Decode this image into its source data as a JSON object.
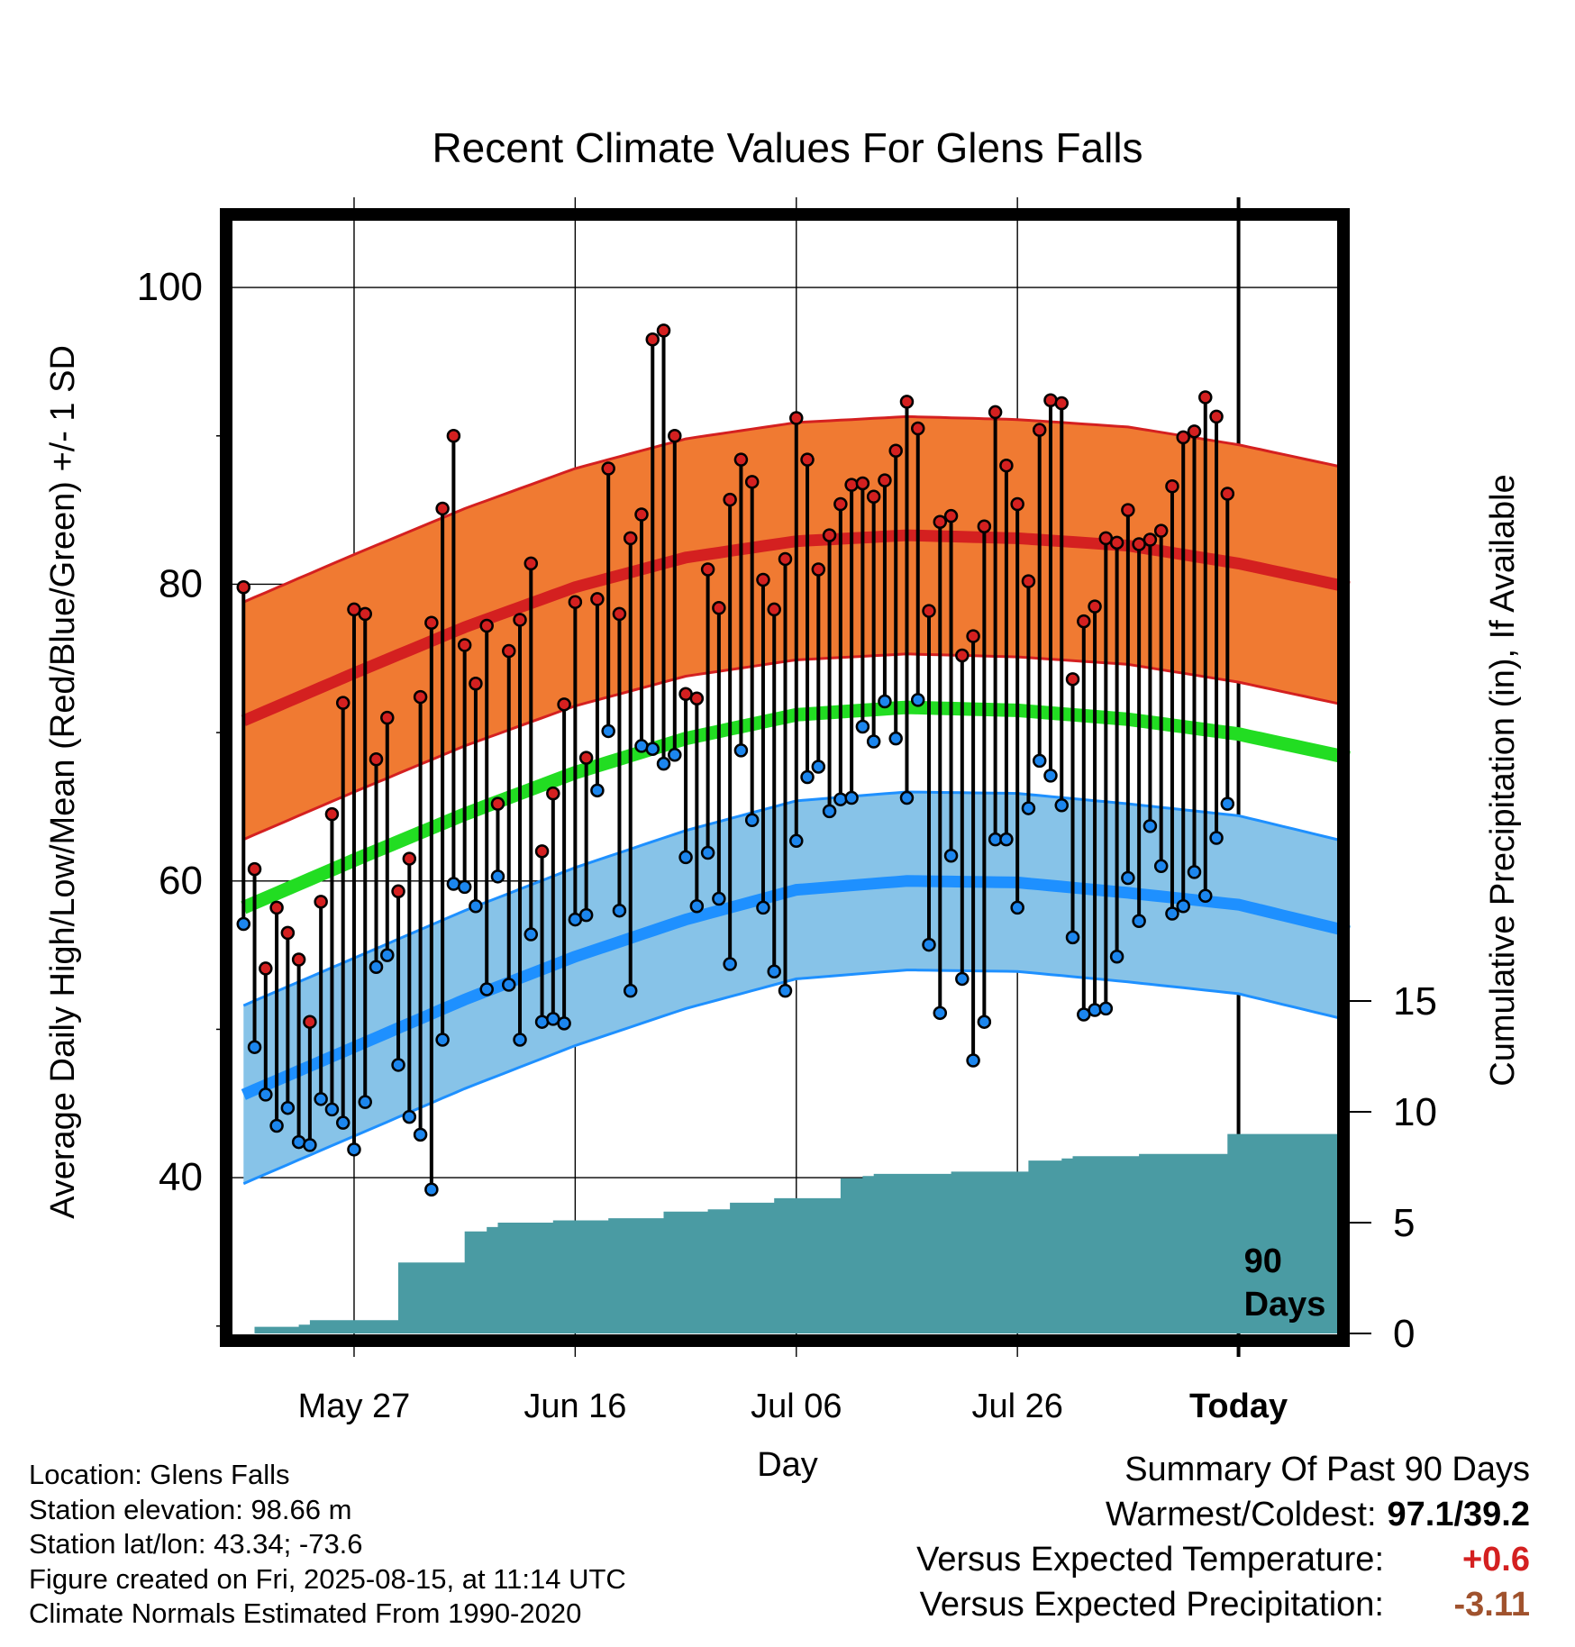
{
  "chart_data": {
    "type": "line",
    "title": "Recent Climate Values For Glens Falls",
    "xlabel": "Day",
    "ylabel_left": "Average Daily High/Low/Mean (Red/Blue/Green) +/- 1 SD",
    "ylabel_right": "Cumulative Precipitation (in), If Available",
    "x_ticks": [
      "May 27",
      "Jun 16",
      "Jul 06",
      "Jul 26",
      "Today"
    ],
    "x_tick_days": [
      10,
      30,
      50,
      70,
      90
    ],
    "xlim": [
      -1,
      99
    ],
    "y_left_ticks": [
      40,
      60,
      80,
      100
    ],
    "y_left_minor_ticks": [
      30,
      50,
      70,
      90
    ],
    "ylim_left": [
      29.5,
      104.5
    ],
    "y_right_ticks": [
      0,
      5,
      10,
      15
    ],
    "today_marker": "90\nDays",
    "grid": true,
    "normals": {
      "days": [
        0,
        10,
        20,
        30,
        40,
        50,
        60,
        70,
        80,
        90,
        100
      ],
      "high_mean": [
        70.8,
        74.0,
        77.1,
        79.8,
        81.8,
        82.9,
        83.3,
        83.1,
        82.6,
        81.4,
        79.8
      ],
      "high_sd": 8.0,
      "mean": [
        58.2,
        61.4,
        64.5,
        67.3,
        69.6,
        71.2,
        71.7,
        71.5,
        70.9,
        69.9,
        68.3
      ],
      "low_mean": [
        45.6,
        48.8,
        52.0,
        54.9,
        57.4,
        59.4,
        60.0,
        59.9,
        59.2,
        58.4,
        56.6
      ],
      "low_sd": 6.0
    },
    "series": [
      {
        "name": "High",
        "color": "#d42020",
        "values": [
          79.8,
          60.8,
          54.1,
          58.2,
          56.5,
          54.7,
          50.5,
          58.6,
          64.5,
          72.0,
          78.3,
          78.0,
          68.2,
          71.0,
          59.3,
          61.5,
          72.4,
          77.4,
          85.1,
          90.0,
          75.9,
          73.3,
          77.2,
          65.2,
          75.5,
          77.6,
          81.4,
          62.0,
          65.9,
          71.9,
          78.8,
          68.3,
          79.0,
          87.8,
          78.0,
          83.1,
          84.7,
          96.5,
          97.1,
          90.0,
          72.6,
          72.3,
          81.0,
          78.4,
          85.7,
          88.4,
          86.9,
          80.3,
          78.3,
          81.7,
          91.2,
          88.4,
          81.0,
          83.3,
          85.4,
          86.7,
          86.8,
          85.9,
          87.0,
          89.0,
          92.3,
          90.5,
          78.2,
          84.2,
          84.6,
          75.2,
          76.5,
          83.9,
          91.6,
          88.0,
          85.4,
          80.2,
          90.4,
          92.4,
          92.2,
          73.6,
          77.5,
          78.5,
          83.1,
          82.8,
          85.0,
          82.7,
          83.0,
          83.6,
          86.6,
          89.9,
          90.3,
          92.6,
          91.3,
          86.1
        ]
      },
      {
        "name": "Low",
        "color": "#1c86ee",
        "values": [
          57.1,
          48.8,
          45.6,
          43.5,
          44.7,
          42.4,
          42.2,
          45.3,
          44.6,
          43.7,
          41.9,
          45.1,
          54.2,
          55.0,
          47.6,
          44.1,
          42.9,
          39.2,
          49.3,
          59.8,
          59.6,
          58.3,
          52.7,
          60.3,
          53.0,
          49.3,
          56.4,
          50.5,
          50.7,
          50.4,
          57.4,
          57.7,
          66.1,
          70.1,
          58.0,
          52.6,
          69.1,
          68.9,
          67.9,
          68.5,
          61.6,
          58.3,
          61.9,
          58.8,
          54.4,
          68.8,
          64.1,
          58.2,
          53.9,
          52.6,
          62.7,
          67.0,
          67.7,
          64.7,
          65.5,
          65.6,
          70.4,
          69.4,
          72.1,
          69.6,
          65.6,
          72.2,
          55.7,
          51.1,
          61.7,
          53.4,
          47.9,
          50.5,
          62.8,
          62.8,
          58.2,
          64.9,
          68.1,
          67.1,
          65.1,
          56.2,
          51.0,
          51.3,
          51.4,
          54.9,
          60.2,
          57.3,
          63.7,
          61.0,
          57.8,
          58.3,
          60.6,
          59.0,
          62.9,
          65.2
        ]
      }
    ],
    "precip_cumulative": {
      "name": "Cumulative Precipitation",
      "color": "#4a9ba3",
      "values": [
        0.0,
        0.3,
        0.3,
        0.3,
        0.3,
        0.4,
        0.6,
        0.6,
        0.6,
        0.6,
        0.6,
        0.6,
        0.6,
        0.6,
        3.2,
        3.2,
        3.2,
        3.2,
        3.2,
        3.2,
        4.6,
        4.6,
        4.8,
        5.0,
        5.0,
        5.0,
        5.0,
        5.0,
        5.1,
        5.1,
        5.1,
        5.1,
        5.1,
        5.2,
        5.2,
        5.2,
        5.2,
        5.2,
        5.5,
        5.5,
        5.5,
        5.5,
        5.6,
        5.6,
        5.9,
        5.9,
        5.9,
        5.9,
        6.1,
        6.1,
        6.1,
        6.1,
        6.1,
        6.1,
        7.0,
        7.0,
        7.1,
        7.2,
        7.2,
        7.2,
        7.2,
        7.2,
        7.2,
        7.2,
        7.3,
        7.3,
        7.3,
        7.3,
        7.3,
        7.3,
        7.3,
        7.8,
        7.8,
        7.8,
        7.9,
        8.0,
        8.0,
        8.0,
        8.0,
        8.0,
        8.0,
        8.1,
        8.1,
        8.1,
        8.1,
        8.1,
        8.1,
        8.1,
        8.1,
        9.0,
        9.0,
        9.0,
        9.0,
        9.0,
        9.0,
        9.0,
        9.0,
        9.0,
        9.0,
        9.0,
        9.0
      ]
    },
    "colors": {
      "high_band": "#f07a32",
      "high_line": "#d42020",
      "mean_line": "#22dd22",
      "low_band": "#87c3e8",
      "low_line": "#1e90ff",
      "precip": "#4a9ba3"
    }
  },
  "footer": {
    "location": "Location: Glens Falls",
    "elevation": "Station elevation: 98.66 m",
    "latlon": "Station lat/lon: 43.34; -73.6",
    "created": "Figure created on Fri, 2025-08-15, at 11:14 UTC",
    "normals": "Climate Normals Estimated From 1990-2020"
  },
  "summary": {
    "title": "Summary Of Past 90 Days",
    "warmest_coldest_label": "Warmest/Coldest:",
    "warmest_coldest_value": "97.1/39.2",
    "temp_label": "Versus Expected Temperature:",
    "temp_value": "+0.6",
    "temp_color": "#d42020",
    "precip_label": "Versus Expected Precipitation:",
    "precip_value": "-3.11",
    "precip_color": "#a0522d"
  }
}
